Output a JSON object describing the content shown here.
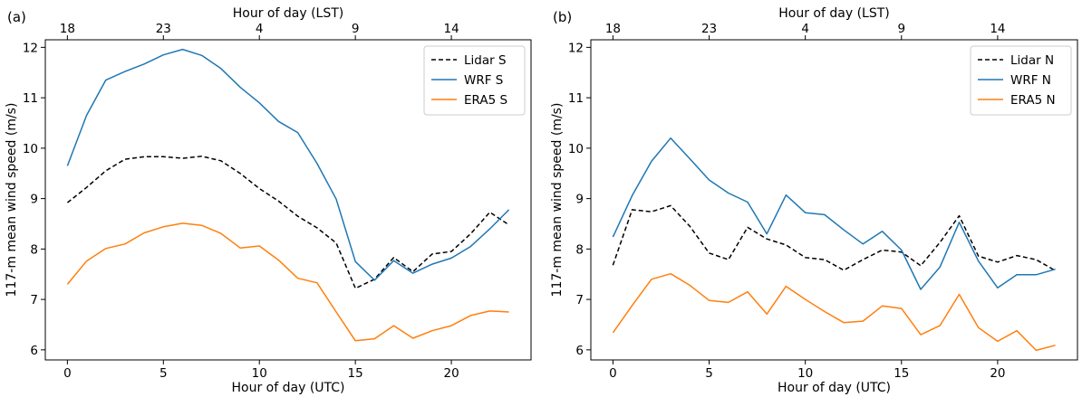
{
  "chart_data": [
    {
      "type": "line",
      "panel_label": "(a)",
      "xlabel": "Hour of day (UTC)",
      "ylabel": "117-m mean wind speed (m/s)",
      "top_xlabel": "Hour of day (LST)",
      "xlim": [
        -1.15,
        24.15
      ],
      "ylim": [
        5.8,
        12.15
      ],
      "xticks": [
        0,
        5,
        10,
        15,
        20
      ],
      "yticks": [
        6,
        7,
        8,
        9,
        10,
        11,
        12
      ],
      "top_ticks": [
        {
          "label": "18",
          "x": 0
        },
        {
          "label": "23",
          "x": 5
        },
        {
          "label": "4",
          "x": 10
        },
        {
          "label": "9",
          "x": 15
        },
        {
          "label": "14",
          "x": 20
        }
      ],
      "legend_position": "top-right",
      "grid": false,
      "x": [
        0,
        1,
        2,
        3,
        4,
        5,
        6,
        7,
        8,
        9,
        10,
        11,
        12,
        13,
        14,
        15,
        16,
        17,
        18,
        19,
        20,
        21,
        22,
        23
      ],
      "series": [
        {
          "name": "Lidar S",
          "color": "#000000",
          "dashed": true,
          "values": [
            8.92,
            9.22,
            9.55,
            9.78,
            9.83,
            9.83,
            9.8,
            9.84,
            9.75,
            9.5,
            9.2,
            8.95,
            8.65,
            8.42,
            8.12,
            7.22,
            7.4,
            7.83,
            7.55,
            7.9,
            7.95,
            8.3,
            8.73,
            8.48
          ]
        },
        {
          "name": "WRF S",
          "color": "#1f77b4",
          "dashed": false,
          "values": [
            9.65,
            10.65,
            11.35,
            11.52,
            11.67,
            11.85,
            11.96,
            11.84,
            11.58,
            11.21,
            10.9,
            10.53,
            10.31,
            9.7,
            8.99,
            7.75,
            7.38,
            7.77,
            7.52,
            7.7,
            7.82,
            8.05,
            8.4,
            8.78
          ]
        },
        {
          "name": "ERA5 S",
          "color": "#ff7f0e",
          "dashed": false,
          "values": [
            7.3,
            7.76,
            8.01,
            8.1,
            8.32,
            8.44,
            8.51,
            8.47,
            8.31,
            8.02,
            8.06,
            7.78,
            7.42,
            7.33,
            6.75,
            6.18,
            6.22,
            6.48,
            6.23,
            6.38,
            6.48,
            6.68,
            6.77,
            6.75
          ]
        }
      ]
    },
    {
      "type": "line",
      "panel_label": "(b)",
      "xlabel": "Hour of day (UTC)",
      "ylabel": "117-m mean wind speed (m/s)",
      "top_xlabel": "Hour of day (LST)",
      "xlim": [
        -1.15,
        24.15
      ],
      "ylim": [
        5.8,
        12.15
      ],
      "xticks": [
        0,
        5,
        10,
        15,
        20
      ],
      "yticks": [
        6,
        7,
        8,
        9,
        10,
        11,
        12
      ],
      "top_ticks": [
        {
          "label": "18",
          "x": 0
        },
        {
          "label": "23",
          "x": 5
        },
        {
          "label": "4",
          "x": 10
        },
        {
          "label": "9",
          "x": 15
        },
        {
          "label": "14",
          "x": 20
        }
      ],
      "legend_position": "top-right",
      "grid": false,
      "x": [
        0,
        1,
        2,
        3,
        4,
        5,
        6,
        7,
        8,
        9,
        10,
        11,
        12,
        13,
        14,
        15,
        16,
        17,
        18,
        19,
        20,
        21,
        22,
        23
      ],
      "series": [
        {
          "name": "Lidar N",
          "color": "#000000",
          "dashed": true,
          "values": [
            7.68,
            8.78,
            8.74,
            8.86,
            8.45,
            7.92,
            7.79,
            8.43,
            8.2,
            8.08,
            7.83,
            7.79,
            7.58,
            7.79,
            7.98,
            7.94,
            7.67,
            8.13,
            8.66,
            7.86,
            7.74,
            7.87,
            7.79,
            7.57
          ]
        },
        {
          "name": "WRF N",
          "color": "#1f77b4",
          "dashed": false,
          "values": [
            8.24,
            9.06,
            9.74,
            10.2,
            9.79,
            9.37,
            9.11,
            8.93,
            8.3,
            9.07,
            8.72,
            8.68,
            8.38,
            8.1,
            8.35,
            7.98,
            7.2,
            7.64,
            8.53,
            7.76,
            7.23,
            7.49,
            7.49,
            7.6
          ]
        },
        {
          "name": "ERA5 N",
          "color": "#ff7f0e",
          "dashed": false,
          "values": [
            6.34,
            6.88,
            7.4,
            7.51,
            7.28,
            6.98,
            6.94,
            7.15,
            6.71,
            7.26,
            7.0,
            6.76,
            6.54,
            6.57,
            6.87,
            6.82,
            6.3,
            6.48,
            7.1,
            6.44,
            6.17,
            6.38,
            5.99,
            6.09
          ]
        }
      ]
    }
  ]
}
